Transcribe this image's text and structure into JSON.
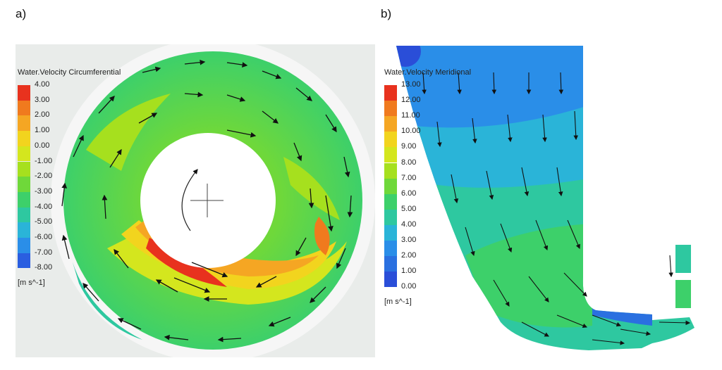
{
  "panel_a": {
    "label": "a)",
    "legend": {
      "title": "Water.Velocity Circumferential",
      "ticks": [
        "4.00",
        "3.00",
        "2.00",
        "1.00",
        "0.00",
        "-1.00",
        "-2.00",
        "-3.00",
        "-4.00",
        "-5.00",
        "-6.00",
        "-7.00",
        "-8.00"
      ],
      "unit": "[m s^-1]",
      "colors": [
        "#e8321e",
        "#f07a1e",
        "#f5a623",
        "#f2d41e",
        "#d4e61e",
        "#a6e01e",
        "#6fd83a",
        "#3dd06a",
        "#2ec8a0",
        "#2ab4d8",
        "#2a8ee8",
        "#2a5ee0",
        "#2a2ed8"
      ]
    }
  },
  "panel_b": {
    "label": "b)",
    "legend": {
      "title": "Water.Velocity Meridional",
      "ticks": [
        "13.00",
        "12.00",
        "11.00",
        "10.00",
        "9.00",
        "8.00",
        "7.00",
        "6.00",
        "5.00",
        "4.00",
        "3.00",
        "2.00",
        "1.00",
        "0.00"
      ],
      "unit": "[m s^-1]",
      "colors": [
        "#e8321e",
        "#f07a1e",
        "#f5a623",
        "#f2d41e",
        "#d4e61e",
        "#a6e01e",
        "#6fd83a",
        "#3dd06a",
        "#2ec8a0",
        "#2ab4d8",
        "#2a8ee8",
        "#2a70e0",
        "#2a4ed8"
      ]
    }
  }
}
